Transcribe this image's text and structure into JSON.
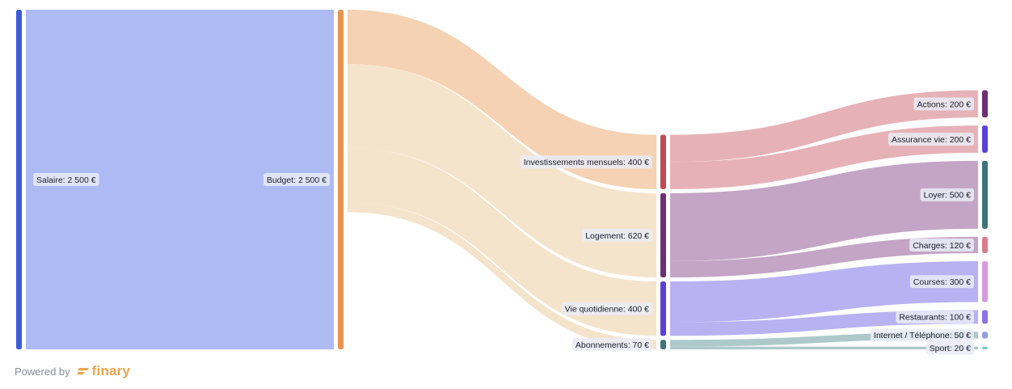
{
  "chart_data": {
    "type": "sankey",
    "unit": "€",
    "nodes": [
      {
        "id": "salaire",
        "label": "Salaire: 2 500 €",
        "value": 2500,
        "color": "#3d5bd9"
      },
      {
        "id": "budget",
        "label": "Budget: 2 500 €",
        "value": 2500,
        "color": "#e8944f"
      },
      {
        "id": "invest",
        "label": "Investissements mensuels: 400 €",
        "value": 400,
        "color": "#c14a55"
      },
      {
        "id": "logement",
        "label": "Logement: 620 €",
        "value": 620,
        "color": "#6d2f73"
      },
      {
        "id": "vieq",
        "label": "Vie quotidienne: 400 €",
        "value": 400,
        "color": "#5a3fd9"
      },
      {
        "id": "abos",
        "label": "Abonnements: 70 €",
        "value": 70,
        "color": "#3d7479"
      },
      {
        "id": "actions",
        "label": "Actions: 200 €",
        "value": 200,
        "color": "#6d2f73"
      },
      {
        "id": "assurance",
        "label": "Assurance vie: 200 €",
        "value": 200,
        "color": "#5a3fd9"
      },
      {
        "id": "loyer",
        "label": "Loyer: 500 €",
        "value": 500,
        "color": "#3d7479"
      },
      {
        "id": "charges",
        "label": "Charges: 120 €",
        "value": 120,
        "color": "#d97d8a"
      },
      {
        "id": "courses",
        "label": "Courses: 300 €",
        "value": 300,
        "color": "#d89ad8"
      },
      {
        "id": "restaurants",
        "label": "Restaurants: 100 €",
        "value": 100,
        "color": "#8c73e6"
      },
      {
        "id": "internet",
        "label": "Internet / Téléphone: 50 €",
        "value": 50,
        "color": "#8f9fe0"
      },
      {
        "id": "sport",
        "label": "Sport: 20 €",
        "value": 20,
        "color": "#79c6c9"
      }
    ],
    "links": [
      {
        "source": "salaire",
        "target": "budget",
        "value": 2500,
        "color": "#aebaf4"
      },
      {
        "source": "budget",
        "target": "invest",
        "value": 400,
        "color": "#f4d2b3"
      },
      {
        "source": "budget",
        "target": "logement",
        "value": 620,
        "color": "#f5e4cc"
      },
      {
        "source": "budget",
        "target": "vieq",
        "value": 400,
        "color": "#f5e4cc"
      },
      {
        "source": "budget",
        "target": "abos",
        "value": 70,
        "color": "#f5e4cc"
      },
      {
        "source": "invest",
        "target": "actions",
        "value": 200,
        "color": "#e6b2b7"
      },
      {
        "source": "invest",
        "target": "assurance",
        "value": 200,
        "color": "#e6b2b7"
      },
      {
        "source": "logement",
        "target": "loyer",
        "value": 500,
        "color": "#c4a5c6"
      },
      {
        "source": "logement",
        "target": "charges",
        "value": 120,
        "color": "#c4a5c6"
      },
      {
        "source": "vieq",
        "target": "courses",
        "value": 300,
        "color": "#b9b1f2"
      },
      {
        "source": "vieq",
        "target": "restaurants",
        "value": 100,
        "color": "#b9b1f2"
      },
      {
        "source": "abos",
        "target": "internet",
        "value": 50,
        "color": "#aec9cb"
      },
      {
        "source": "abos",
        "target": "sport",
        "value": 20,
        "color": "#aec9cb"
      }
    ]
  },
  "footer": {
    "powered_by": "Powered by",
    "brand": "finary"
  }
}
